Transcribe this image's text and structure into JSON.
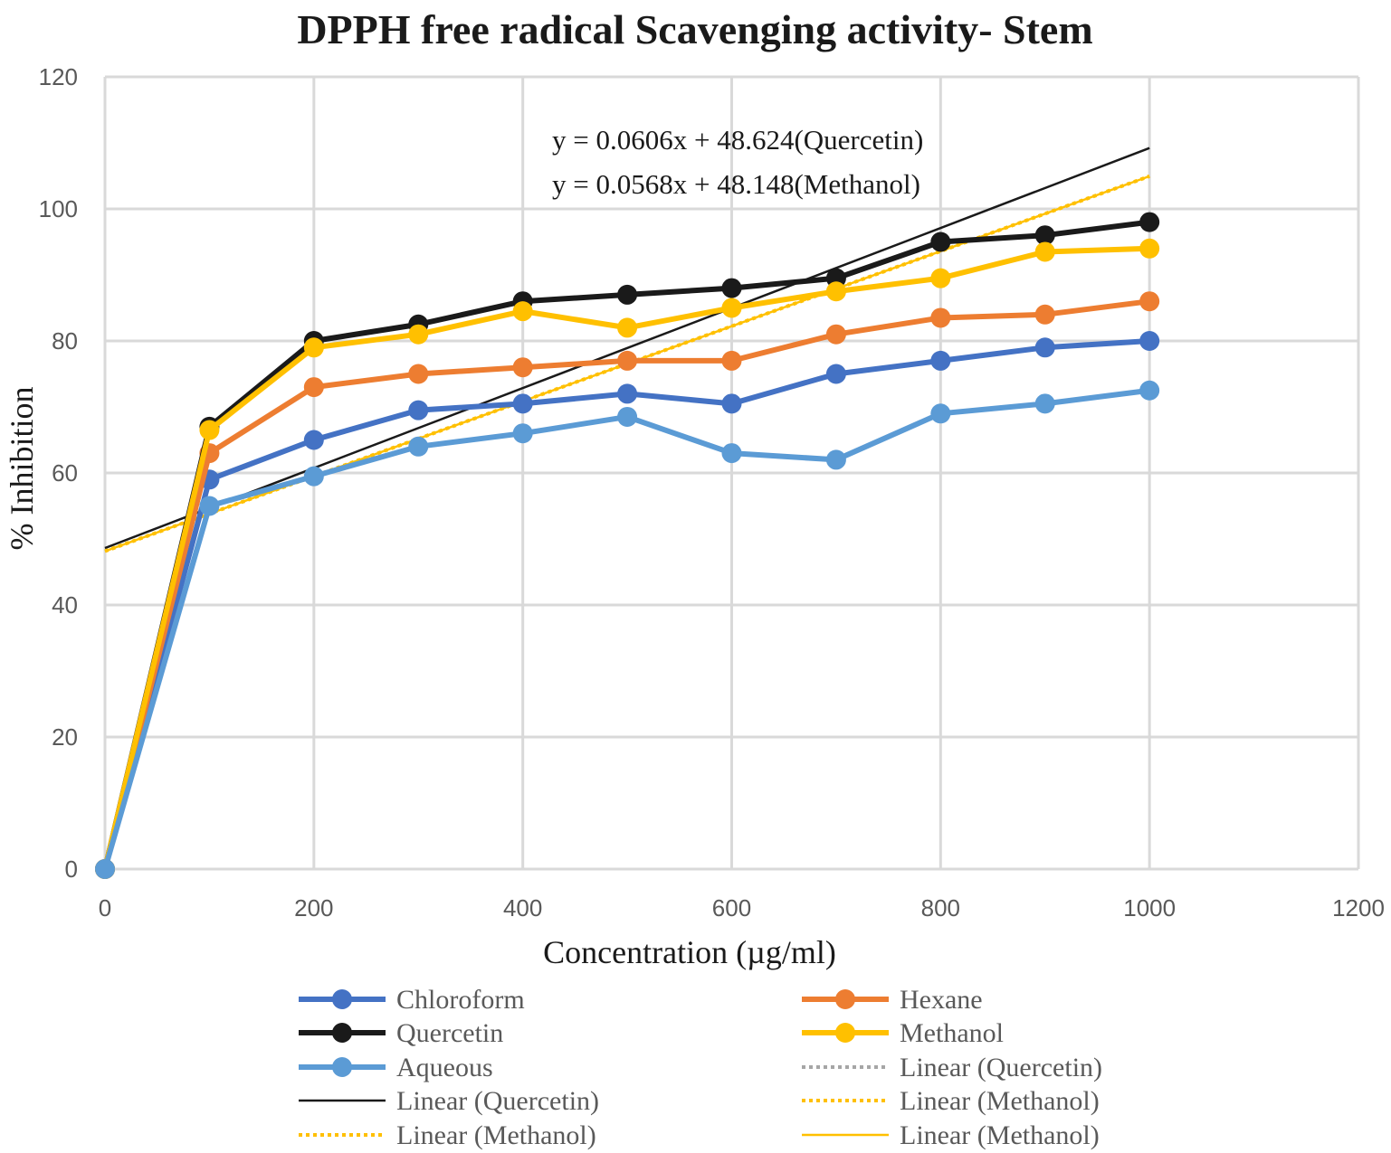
{
  "chart_data": {
    "type": "line",
    "title": "DPPH free radical Scavenging activity- Stem",
    "xlabel": "Concentration (µg/ml)",
    "ylabel": "% Inhibition",
    "xlim": [
      0,
      1200
    ],
    "ylim": [
      0,
      120
    ],
    "x_ticks": [
      "0",
      "200",
      "400",
      "600",
      "800",
      "1000",
      "1200"
    ],
    "y_ticks": [
      "0",
      "20",
      "40",
      "60",
      "80",
      "100",
      "120"
    ],
    "x": [
      0,
      100,
      200,
      300,
      400,
      500,
      600,
      700,
      800,
      900,
      1000
    ],
    "series": [
      {
        "name": "Chloroform",
        "color": "#4472C4",
        "values": [
          0,
          59,
          65,
          69.5,
          70.5,
          72,
          70.5,
          75,
          77,
          79,
          80
        ]
      },
      {
        "name": "Hexane",
        "color": "#ED7D31",
        "values": [
          0,
          63,
          73,
          75,
          76,
          77,
          77,
          81,
          83.5,
          84,
          86
        ]
      },
      {
        "name": "Quercetin",
        "color": "#1A1A1A",
        "values": [
          0,
          67,
          80,
          82.5,
          86,
          87,
          88,
          89.5,
          95,
          96,
          98
        ]
      },
      {
        "name": "Methanol",
        "color": "#FFC000",
        "values": [
          0,
          66.5,
          79,
          81,
          84.5,
          82,
          85,
          87.5,
          89.5,
          93.5,
          94
        ]
      },
      {
        "name": "Aqueous",
        "color": "#5B9BD5",
        "values": [
          0,
          55,
          59.5,
          64,
          66,
          68.5,
          63,
          62,
          69,
          70.5,
          72.5
        ]
      }
    ],
    "trendlines": [
      {
        "name": "Linear (Quercetin)",
        "slope": 0.0606,
        "intercept": 48.624,
        "color": "#1A1A1A",
        "style": "solid"
      },
      {
        "name": "Linear (Methanol)",
        "slope": 0.0568,
        "intercept": 48.148,
        "color": "#FFC000",
        "style": "dotted"
      },
      {
        "name": "Linear (Methanol)",
        "slope": 0.0568,
        "intercept": 48.148,
        "color": "#FFC000",
        "style": "solid"
      }
    ],
    "equations": [
      "y = 0.0606x + 48.624(Quercetin)",
      "y = 0.0568x + 48.148(Methanol)"
    ],
    "legend": [
      {
        "label": "Chloroform",
        "color": "#4472C4",
        "style": "marker"
      },
      {
        "label": "Hexane",
        "color": "#ED7D31",
        "style": "marker"
      },
      {
        "label": "Quercetin",
        "color": "#1A1A1A",
        "style": "marker"
      },
      {
        "label": "Methanol",
        "color": "#FFC000",
        "style": "marker"
      },
      {
        "label": "Aqueous",
        "color": "#5B9BD5",
        "style": "marker"
      },
      {
        "label": "Linear (Quercetin)",
        "color": "#A6A6A6",
        "style": "dotted"
      },
      {
        "label": "Linear (Quercetin)",
        "color": "#1A1A1A",
        "style": "solid"
      },
      {
        "label": "Linear (Methanol)",
        "color": "#FFC000",
        "style": "dotted"
      },
      {
        "label": "Linear (Methanol)",
        "color": "#FFC000",
        "style": "dotted"
      },
      {
        "label": "Linear (Methanol)",
        "color": "#FFC000",
        "style": "solid"
      }
    ],
    "legend_position": "bottom",
    "grid": true
  }
}
